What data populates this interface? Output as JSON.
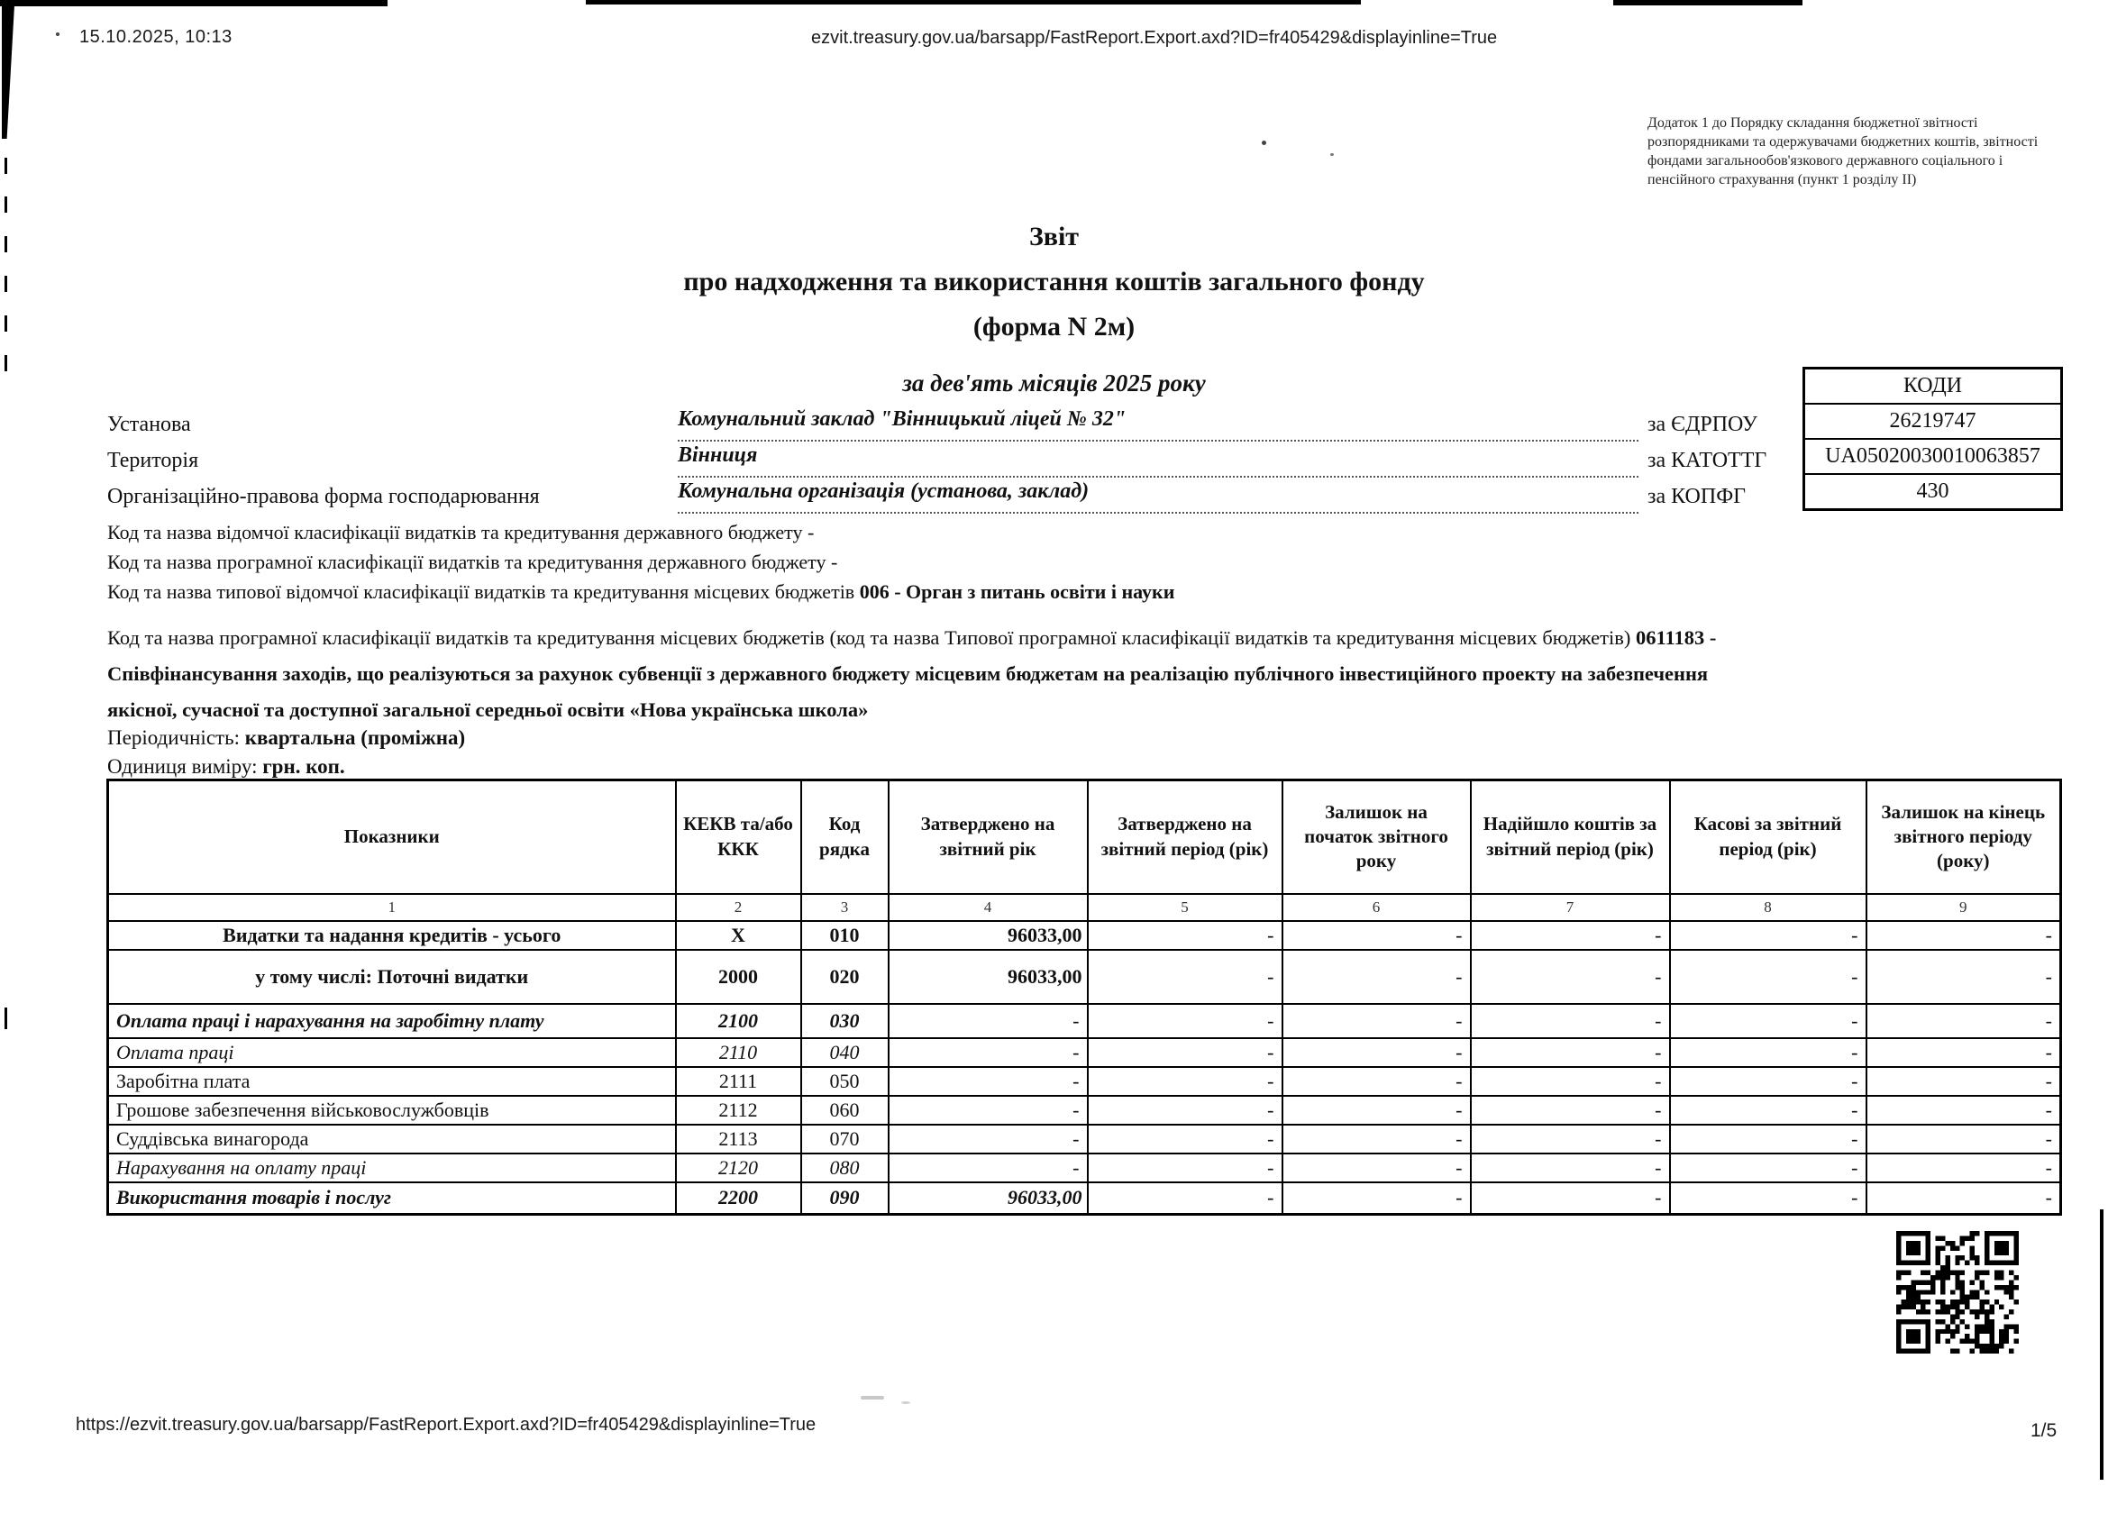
{
  "browser_header": {
    "datetime": "15.10.2025, 10:13",
    "url": "ezvit.treasury.gov.ua/barsapp/FastReport.Export.axd?ID=fr405429&displayinline=True"
  },
  "browser_footer": {
    "url": "https://ezvit.treasury.gov.ua/barsapp/FastReport.Export.axd?ID=fr405429&displayinline=True",
    "page_number": "1/5"
  },
  "annex_note": {
    "line1": "Додаток 1 до Порядку складання бюджетної звітності",
    "line2": "розпорядниками та одержувачами бюджетних коштів, звітності",
    "line3": "фондами загальнообов'язкового державного соціального і",
    "line4": "пенсійного страхування (пункт 1 розділу II)"
  },
  "title": {
    "line1": "Звіт",
    "line2": "про надходження та використання коштів загального фонду",
    "form": "(форма N 2м)",
    "period": "за дев'ять місяців 2025 року"
  },
  "org": {
    "fields": [
      {
        "label": "Установа",
        "value": "Комунальний заклад \"Вінницький ліцей № 32\"",
        "code_label": "за ЄДРПОУ"
      },
      {
        "label": "Територія",
        "value": "Вінниця",
        "code_label": "за КАТОТТГ"
      },
      {
        "label": "Організаційно-правова форма господарювання",
        "value": "Комунальна організація (установа, заклад)",
        "code_label": "за КОПФГ"
      }
    ],
    "codes_box": {
      "header": "КОДИ",
      "values": [
        "26219747",
        "UA05020030010063857",
        "430"
      ]
    }
  },
  "classification": {
    "line1": {
      "text": "Код та назва відомчої класифікації видатків та кредитування державного бюджету -",
      "bold": ""
    },
    "line2": {
      "text": "Код та назва програмної класифікації видатків та кредитування державного бюджету -",
      "bold": ""
    },
    "line3": {
      "text": "Код та назва типової відомчої класифікації видатків та кредитування місцевих бюджетів ",
      "bold": "006 - Орган з питань освіти і науки"
    }
  },
  "program_paragraph": {
    "text": "Код та назва програмної класифікації видатків та кредитування місцевих бюджетів (код та назва Типової програмної класифікації видатків та кредитування місцевих бюджетів) ",
    "bold": "0611183 - Співфінансування заходів, що реалізуються за рахунок субвенції з державного бюджету місцевим бюджетам на реалізацію публічного інвестиційного проекту на забезпечення якісної, сучасної та доступної загальної середньої освіти «Нова українська школа»"
  },
  "periodicity": {
    "label": "Періодичність: ",
    "value": "квартальна (проміжна)"
  },
  "unit": {
    "label": "Одиниця виміру: ",
    "value": "грн. коп."
  },
  "table": {
    "headers": [
      "Показники",
      "КЕКВ та/або ККК",
      "Код рядка",
      "Затверджено на звітний рік",
      "Затверджено на звітний період (рік)",
      "Залишок на початок звітного року",
      "Надійшло коштів за звітний період (рік)",
      "Касові за звітний період (рік)",
      "Залишок на кінець звітного періоду (року)"
    ],
    "col_numbers": [
      "1",
      "2",
      "3",
      "4",
      "5",
      "6",
      "7",
      "8",
      "9"
    ],
    "rows": [
      {
        "style": "bc",
        "cells": [
          "Видатки та надання кредитів - усього",
          "X",
          "010",
          "96033,00",
          "-",
          "-",
          "-",
          "-",
          "-"
        ]
      },
      {
        "style": "bc",
        "cells": [
          "у тому числі: Поточні видатки",
          "2000",
          "020",
          "96033,00",
          "-",
          "-",
          "-",
          "-",
          "-"
        ]
      },
      {
        "style": "bi",
        "cells": [
          "Оплата праці і нарахування на заробітну плату",
          "2100",
          "030",
          "-",
          "-",
          "-",
          "-",
          "-",
          "-"
        ]
      },
      {
        "style": "i",
        "cells": [
          "Оплата праці",
          "2110",
          "040",
          "-",
          "-",
          "-",
          "-",
          "-",
          "-"
        ]
      },
      {
        "style": "n",
        "cells": [
          "Заробітна плата",
          "2111",
          "050",
          "-",
          "-",
          "-",
          "-",
          "-",
          "-"
        ]
      },
      {
        "style": "n",
        "cells": [
          "Грошове забезпечення військовослужбовців",
          "2112",
          "060",
          "-",
          "-",
          "-",
          "-",
          "-",
          "-"
        ]
      },
      {
        "style": "n",
        "cells": [
          "Суддівська винагорода",
          "2113",
          "070",
          "-",
          "-",
          "-",
          "-",
          "-",
          "-"
        ]
      },
      {
        "style": "i",
        "cells": [
          "Нарахування на оплату праці",
          "2120",
          "080",
          "-",
          "-",
          "-",
          "-",
          "-",
          "-"
        ]
      },
      {
        "style": "bi",
        "cells": [
          "Використання товарів і послуг",
          "2200",
          "090",
          "96033,00",
          "-",
          "-",
          "-",
          "-",
          "-"
        ]
      }
    ]
  }
}
